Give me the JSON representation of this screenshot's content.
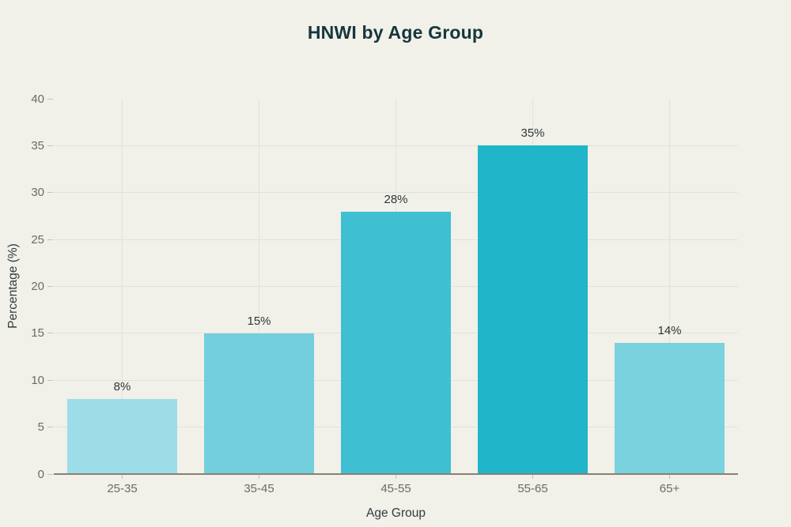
{
  "title": "HNWI by Age Group",
  "chart_data": {
    "type": "bar",
    "title": "HNWI by Age Group",
    "xlabel": "Age Group",
    "ylabel": "Percentage (%)",
    "categories": [
      "25-35",
      "35-45",
      "45-55",
      "55-65",
      "65+"
    ],
    "values": [
      8,
      15,
      28,
      35,
      14
    ],
    "value_labels": [
      "8%",
      "15%",
      "28%",
      "35%",
      "14%"
    ],
    "bar_colors": [
      "#9cdde8",
      "#73cfdc",
      "#3ec0d2",
      "#20b5c8",
      "#79d2dd"
    ],
    "ylim": [
      0,
      40
    ],
    "yticks": [
      0,
      5,
      10,
      15,
      20,
      25,
      30,
      35,
      40
    ],
    "ytick_labels": [
      "0",
      "5",
      "10",
      "15",
      "20",
      "25",
      "30",
      "35",
      "40"
    ],
    "grid": "horizontal gridlines at y ticks (5-35) and vertical gridlines at category centers",
    "legend": "none"
  },
  "colors": {
    "background": "#f1f0e9",
    "title_text": "#16363c",
    "grid_line": "#e3e2da",
    "tick_mark": "#c4c3ba",
    "axis_line": "#8a8074",
    "tick_label_text": "#6b6b67",
    "value_label_text": "#2f3739",
    "axis_title_text": "#303c3e"
  }
}
